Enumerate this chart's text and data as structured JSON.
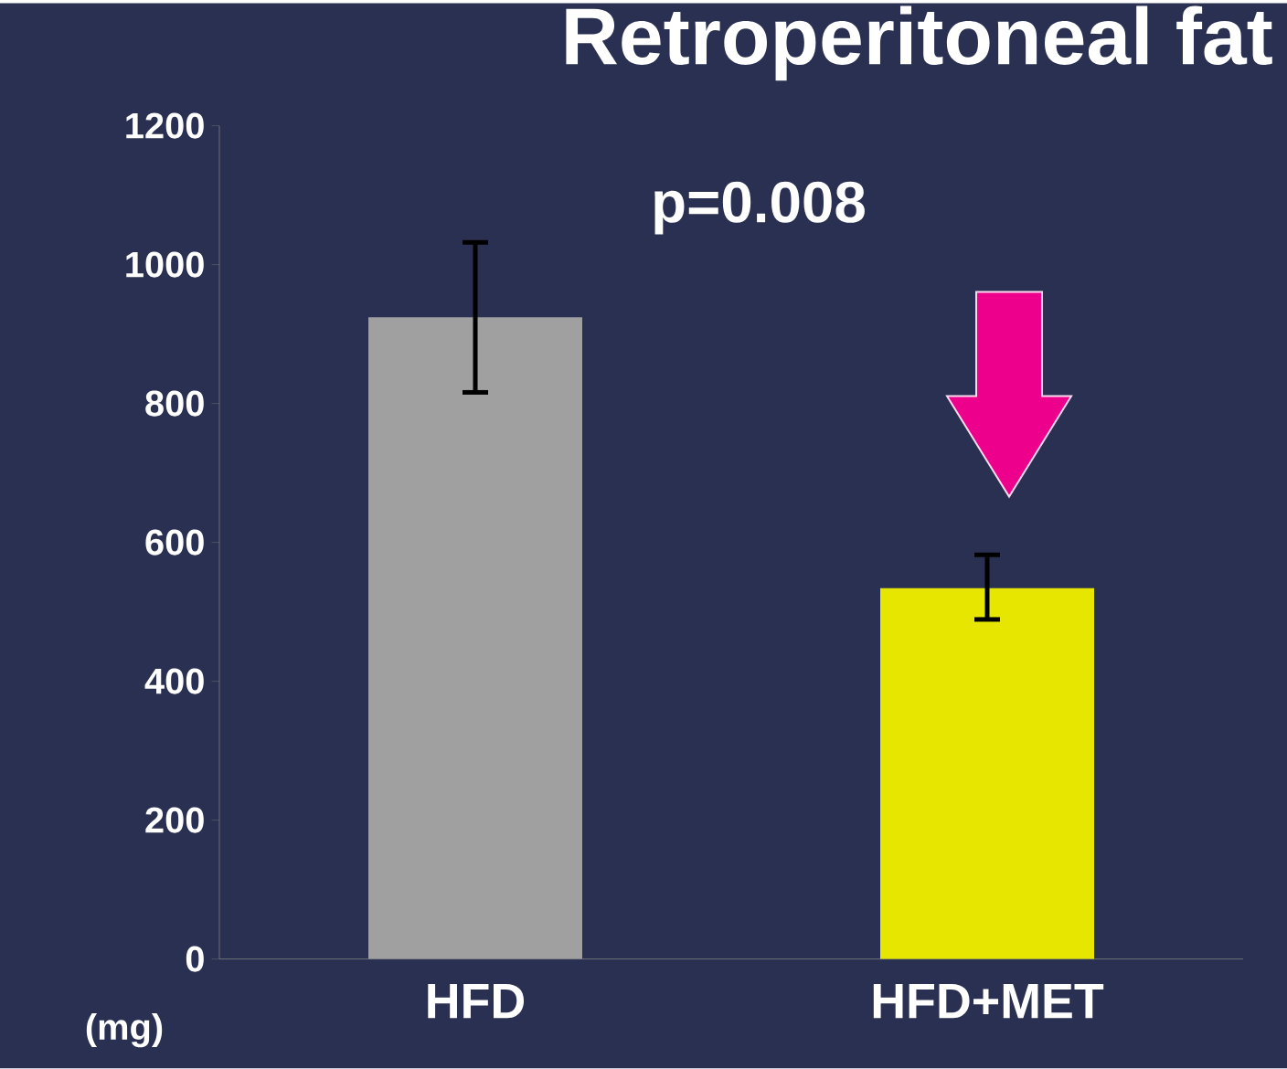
{
  "chart_data": {
    "type": "bar",
    "title": "Retroperitoneal fat",
    "ylabel": "(mg)",
    "categories": [
      "HFD",
      "HFD+MET"
    ],
    "values": [
      924,
      534
    ],
    "colors": [
      "#a0a0a0",
      "#e6e600"
    ],
    "errors": [
      [
        816,
        1032
      ],
      [
        489,
        582
      ]
    ],
    "ylim": [
      0,
      1200
    ],
    "yticks": [
      0,
      200,
      400,
      600,
      800,
      1000,
      1200
    ],
    "annotations": [
      "p=0.008"
    ]
  }
}
